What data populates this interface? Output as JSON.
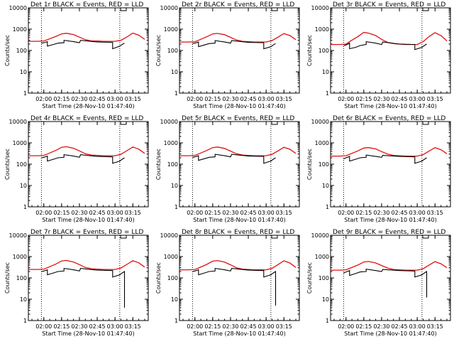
{
  "colors": {
    "events": "#000000",
    "lld": "#e01010",
    "axis": "#000000",
    "background": "#ffffff"
  },
  "shared": {
    "xlabel": "Start Time (28-Nov-10 01:47:40)",
    "ylabel": "Counts/sec",
    "y_ticks": [
      "1",
      "10",
      "100",
      "1000",
      "10000"
    ],
    "x_ticks": [
      "02:00",
      "02:15",
      "02:30",
      "02:45",
      "03:00",
      "03:15"
    ]
  },
  "chart_data": [
    {
      "type": "line",
      "title": "Det 1r BLACK = Events, RED = LLD",
      "yscale": "log",
      "ylim": [
        1,
        10000
      ],
      "xlabel": "Start Time (28-Nov-10 01:47:40)",
      "ylabel": "Counts/sec",
      "vlines": [
        "01:58",
        "03:04"
      ],
      "series": [
        {
          "name": "LLD",
          "x": [
            "01:47",
            "01:55",
            "02:00",
            "02:03",
            "02:10",
            "02:15",
            "02:19",
            "02:25",
            "02:30",
            "02:35",
            "02:40",
            "02:45",
            "02:50",
            "02:55",
            "03:00",
            "03:05",
            "03:10",
            "03:15",
            "03:20",
            "03:25"
          ],
          "y": [
            270,
            270,
            280,
            320,
            450,
            600,
            640,
            560,
            420,
            320,
            280,
            280,
            270,
            270,
            270,
            300,
            430,
            650,
            520,
            330
          ]
        },
        {
          "name": "Events",
          "x": [
            "01:58",
            "02:00",
            "02:03",
            "02:03",
            "02:08",
            "02:12",
            "02:17",
            "02:17",
            "02:25",
            "02:30",
            "02:31",
            "02:45",
            "02:46",
            "02:58",
            "02:58",
            "03:04",
            "03:06",
            "03:08"
          ],
          "y": [
            220,
            230,
            260,
            160,
            190,
            220,
            230,
            300,
            260,
            230,
            300,
            250,
            250,
            240,
            120,
            160,
            190,
            220
          ]
        }
      ]
    },
    {
      "type": "line",
      "title": "Det 2r BLACK = Events, RED = LLD",
      "yscale": "log",
      "ylim": [
        1,
        10000
      ],
      "xlabel": "Start Time (28-Nov-10 01:47:40)",
      "ylabel": "Counts/sec",
      "vlines": [
        "01:58",
        "03:04"
      ],
      "series": [
        {
          "name": "LLD",
          "x": [
            "01:47",
            "01:55",
            "02:00",
            "02:03",
            "02:10",
            "02:15",
            "02:19",
            "02:25",
            "02:30",
            "02:35",
            "02:40",
            "02:45",
            "02:50",
            "02:55",
            "03:00",
            "03:05",
            "03:10",
            "03:15",
            "03:20",
            "03:25"
          ],
          "y": [
            250,
            250,
            260,
            300,
            440,
            600,
            630,
            550,
            410,
            310,
            270,
            260,
            250,
            250,
            250,
            290,
            420,
            620,
            500,
            320
          ]
        },
        {
          "name": "Events",
          "x": [
            "01:58",
            "02:00",
            "02:03",
            "02:03",
            "02:08",
            "02:12",
            "02:17",
            "02:17",
            "02:25",
            "02:30",
            "02:31",
            "02:45",
            "02:46",
            "02:58",
            "02:58",
            "03:04",
            "03:06",
            "03:08"
          ],
          "y": [
            210,
            220,
            250,
            150,
            180,
            210,
            220,
            290,
            250,
            220,
            290,
            240,
            240,
            230,
            120,
            150,
            180,
            210
          ]
        }
      ]
    },
    {
      "type": "line",
      "title": "Det 3r BLACK = Events, RED = LLD",
      "yscale": "log",
      "ylim": [
        1,
        10000
      ],
      "xlabel": "Start Time (28-Nov-10 01:47:40)",
      "ylabel": "Counts/sec",
      "vlines": [
        "01:58",
        "03:04"
      ],
      "series": [
        {
          "name": "LLD",
          "x": [
            "01:47",
            "01:55",
            "02:00",
            "02:03",
            "02:10",
            "02:15",
            "02:19",
            "02:25",
            "02:30",
            "02:35",
            "02:40",
            "02:45",
            "02:50",
            "02:55",
            "03:00",
            "03:05",
            "03:10",
            "03:15",
            "03:20",
            "03:25"
          ],
          "y": [
            190,
            190,
            200,
            260,
            450,
            700,
            650,
            500,
            330,
            240,
            210,
            200,
            190,
            190,
            190,
            260,
            450,
            680,
            500,
            280
          ]
        },
        {
          "name": "Events",
          "x": [
            "01:58",
            "02:00",
            "02:03",
            "02:03",
            "02:08",
            "02:12",
            "02:17",
            "02:17",
            "02:25",
            "02:30",
            "02:31",
            "02:45",
            "02:46",
            "02:58",
            "02:58",
            "03:04",
            "03:06",
            "03:08"
          ],
          "y": [
            170,
            180,
            220,
            120,
            140,
            170,
            190,
            260,
            220,
            190,
            250,
            200,
            200,
            190,
            110,
            140,
            170,
            200
          ]
        }
      ]
    },
    {
      "type": "line",
      "title": "Det 4r BLACK = Events, RED = LLD",
      "yscale": "log",
      "ylim": [
        1,
        10000
      ],
      "xlabel": "Start Time (28-Nov-10 01:47:40)",
      "ylabel": "Counts/sec",
      "vlines": [
        "01:58",
        "03:04"
      ],
      "series": [
        {
          "name": "LLD",
          "x": [
            "01:47",
            "01:55",
            "02:00",
            "02:03",
            "02:10",
            "02:15",
            "02:19",
            "02:25",
            "02:30",
            "02:35",
            "02:40",
            "02:45",
            "02:50",
            "02:55",
            "03:00",
            "03:05",
            "03:10",
            "03:15",
            "03:20",
            "03:25"
          ],
          "y": [
            250,
            250,
            260,
            300,
            440,
            620,
            660,
            560,
            420,
            310,
            270,
            260,
            250,
            250,
            250,
            290,
            430,
            640,
            510,
            320
          ]
        },
        {
          "name": "Events",
          "x": [
            "01:58",
            "02:00",
            "02:03",
            "02:03",
            "02:08",
            "02:12",
            "02:17",
            "02:17",
            "02:25",
            "02:30",
            "02:31",
            "02:45",
            "02:46",
            "02:58",
            "02:58",
            "03:04",
            "03:06",
            "03:08"
          ],
          "y": [
            200,
            210,
            240,
            140,
            170,
            200,
            210,
            280,
            240,
            210,
            280,
            230,
            230,
            220,
            110,
            140,
            170,
            200
          ]
        }
      ]
    },
    {
      "type": "line",
      "title": "Det 5r BLACK = Events, RED = LLD",
      "yscale": "log",
      "ylim": [
        1,
        10000
      ],
      "xlabel": "Start Time (28-Nov-10 01:47:40)",
      "ylabel": "Counts/sec",
      "vlines": [
        "01:58",
        "03:04"
      ],
      "series": [
        {
          "name": "LLD",
          "x": [
            "01:47",
            "01:55",
            "02:00",
            "02:03",
            "02:10",
            "02:15",
            "02:19",
            "02:25",
            "02:30",
            "02:35",
            "02:40",
            "02:45",
            "02:50",
            "02:55",
            "03:00",
            "03:05",
            "03:10",
            "03:15",
            "03:20",
            "03:25"
          ],
          "y": [
            250,
            250,
            260,
            300,
            440,
            600,
            640,
            550,
            410,
            310,
            270,
            260,
            250,
            250,
            250,
            290,
            420,
            620,
            500,
            320
          ]
        },
        {
          "name": "Events",
          "x": [
            "01:58",
            "02:00",
            "02:03",
            "02:03",
            "02:08",
            "02:12",
            "02:17",
            "02:17",
            "02:25",
            "02:30",
            "02:31",
            "02:45",
            "02:46",
            "02:58",
            "02:58",
            "03:04",
            "03:06",
            "03:08"
          ],
          "y": [
            210,
            220,
            250,
            150,
            180,
            210,
            220,
            290,
            250,
            220,
            290,
            240,
            240,
            230,
            110,
            140,
            170,
            200
          ]
        }
      ]
    },
    {
      "type": "line",
      "title": "Det 6r BLACK = Events, RED = LLD",
      "yscale": "log",
      "ylim": [
        1,
        10000
      ],
      "xlabel": "Start Time (28-Nov-10 01:47:40)",
      "ylabel": "Counts/sec",
      "vlines": [
        "01:58",
        "03:04"
      ],
      "series": [
        {
          "name": "LLD",
          "x": [
            "01:47",
            "01:55",
            "02:00",
            "02:03",
            "02:10",
            "02:15",
            "02:19",
            "02:25",
            "02:30",
            "02:35",
            "02:40",
            "02:45",
            "02:50",
            "02:55",
            "03:00",
            "03:05",
            "03:10",
            "03:15",
            "03:20",
            "03:25"
          ],
          "y": [
            240,
            240,
            250,
            290,
            420,
            570,
            600,
            520,
            390,
            300,
            260,
            250,
            240,
            240,
            240,
            280,
            410,
            600,
            480,
            310
          ]
        },
        {
          "name": "Events",
          "x": [
            "01:58",
            "02:00",
            "02:03",
            "02:03",
            "02:08",
            "02:12",
            "02:17",
            "02:17",
            "02:25",
            "02:30",
            "02:31",
            "02:45",
            "02:46",
            "02:58",
            "02:58",
            "03:04",
            "03:06",
            "03:08"
          ],
          "y": [
            180,
            200,
            230,
            140,
            170,
            200,
            210,
            270,
            230,
            210,
            260,
            230,
            230,
            220,
            110,
            140,
            170,
            200
          ]
        }
      ]
    },
    {
      "type": "line",
      "title": "Det 7r BLACK = Events, RED = LLD",
      "yscale": "log",
      "ylim": [
        1,
        10000
      ],
      "xlabel": "Start Time (28-Nov-10 01:47:40)",
      "ylabel": "Counts/sec",
      "vlines": [
        "01:58",
        "03:04"
      ],
      "series": [
        {
          "name": "LLD",
          "x": [
            "01:47",
            "01:55",
            "02:00",
            "02:03",
            "02:10",
            "02:15",
            "02:19",
            "02:25",
            "02:30",
            "02:35",
            "02:40",
            "02:45",
            "02:50",
            "02:55",
            "03:00",
            "03:05",
            "03:10",
            "03:15",
            "03:20",
            "03:25"
          ],
          "y": [
            250,
            250,
            260,
            300,
            440,
            620,
            660,
            560,
            420,
            310,
            270,
            260,
            250,
            250,
            250,
            290,
            430,
            640,
            510,
            320
          ]
        },
        {
          "name": "Events",
          "x": [
            "01:58",
            "02:00",
            "02:03",
            "02:03",
            "02:08",
            "02:12",
            "02:17",
            "02:17",
            "02:25",
            "02:30",
            "02:31",
            "02:45",
            "02:46",
            "02:58",
            "02:58",
            "03:04",
            "03:06",
            "03:08",
            "03:08"
          ],
          "y": [
            200,
            210,
            240,
            140,
            170,
            200,
            210,
            280,
            240,
            210,
            280,
            230,
            230,
            220,
            110,
            140,
            170,
            200,
            4
          ]
        }
      ]
    },
    {
      "type": "line",
      "title": "Det 8r BLACK = Events, RED = LLD",
      "yscale": "log",
      "ylim": [
        1,
        10000
      ],
      "xlabel": "Start Time (28-Nov-10 01:47:40)",
      "ylabel": "Counts/sec",
      "vlines": [
        "01:58",
        "03:04"
      ],
      "series": [
        {
          "name": "LLD",
          "x": [
            "01:47",
            "01:55",
            "02:00",
            "02:03",
            "02:10",
            "02:15",
            "02:19",
            "02:25",
            "02:30",
            "02:35",
            "02:40",
            "02:45",
            "02:50",
            "02:55",
            "03:00",
            "03:05",
            "03:10",
            "03:15",
            "03:20",
            "03:25"
          ],
          "y": [
            240,
            240,
            250,
            290,
            430,
            610,
            650,
            550,
            410,
            300,
            260,
            250,
            240,
            240,
            240,
            280,
            420,
            630,
            500,
            310
          ]
        },
        {
          "name": "Events",
          "x": [
            "01:58",
            "02:00",
            "02:03",
            "02:03",
            "02:08",
            "02:12",
            "02:17",
            "02:17",
            "02:25",
            "02:30",
            "02:31",
            "02:45",
            "02:46",
            "02:58",
            "02:58",
            "03:04",
            "03:06",
            "03:08",
            "03:08"
          ],
          "y": [
            200,
            210,
            240,
            140,
            170,
            200,
            210,
            280,
            240,
            210,
            280,
            230,
            230,
            220,
            110,
            140,
            170,
            200,
            5
          ]
        }
      ]
    },
    {
      "type": "line",
      "title": "Det 9r BLACK = Events, RED = LLD",
      "yscale": "log",
      "ylim": [
        1,
        10000
      ],
      "xlabel": "Start Time (28-Nov-10 01:47:40)",
      "ylabel": "Counts/sec",
      "vlines": [
        "01:58",
        "03:04"
      ],
      "series": [
        {
          "name": "LLD",
          "x": [
            "01:47",
            "01:55",
            "02:00",
            "02:03",
            "02:10",
            "02:15",
            "02:19",
            "02:25",
            "02:30",
            "02:35",
            "02:40",
            "02:45",
            "02:50",
            "02:55",
            "03:00",
            "03:05",
            "03:10",
            "03:15",
            "03:20",
            "03:25"
          ],
          "y": [
            230,
            230,
            240,
            280,
            400,
            560,
            590,
            500,
            380,
            290,
            250,
            240,
            230,
            230,
            230,
            270,
            400,
            580,
            460,
            300
          ]
        },
        {
          "name": "Events",
          "x": [
            "01:58",
            "02:00",
            "02:03",
            "02:03",
            "02:08",
            "02:12",
            "02:17",
            "02:17",
            "02:25",
            "02:30",
            "02:31",
            "02:45",
            "02:46",
            "02:58",
            "02:58",
            "03:04",
            "03:06",
            "03:08",
            "03:08"
          ],
          "y": [
            170,
            190,
            220,
            130,
            160,
            190,
            200,
            260,
            220,
            200,
            250,
            220,
            220,
            210,
            110,
            140,
            170,
            200,
            12
          ]
        }
      ]
    }
  ]
}
